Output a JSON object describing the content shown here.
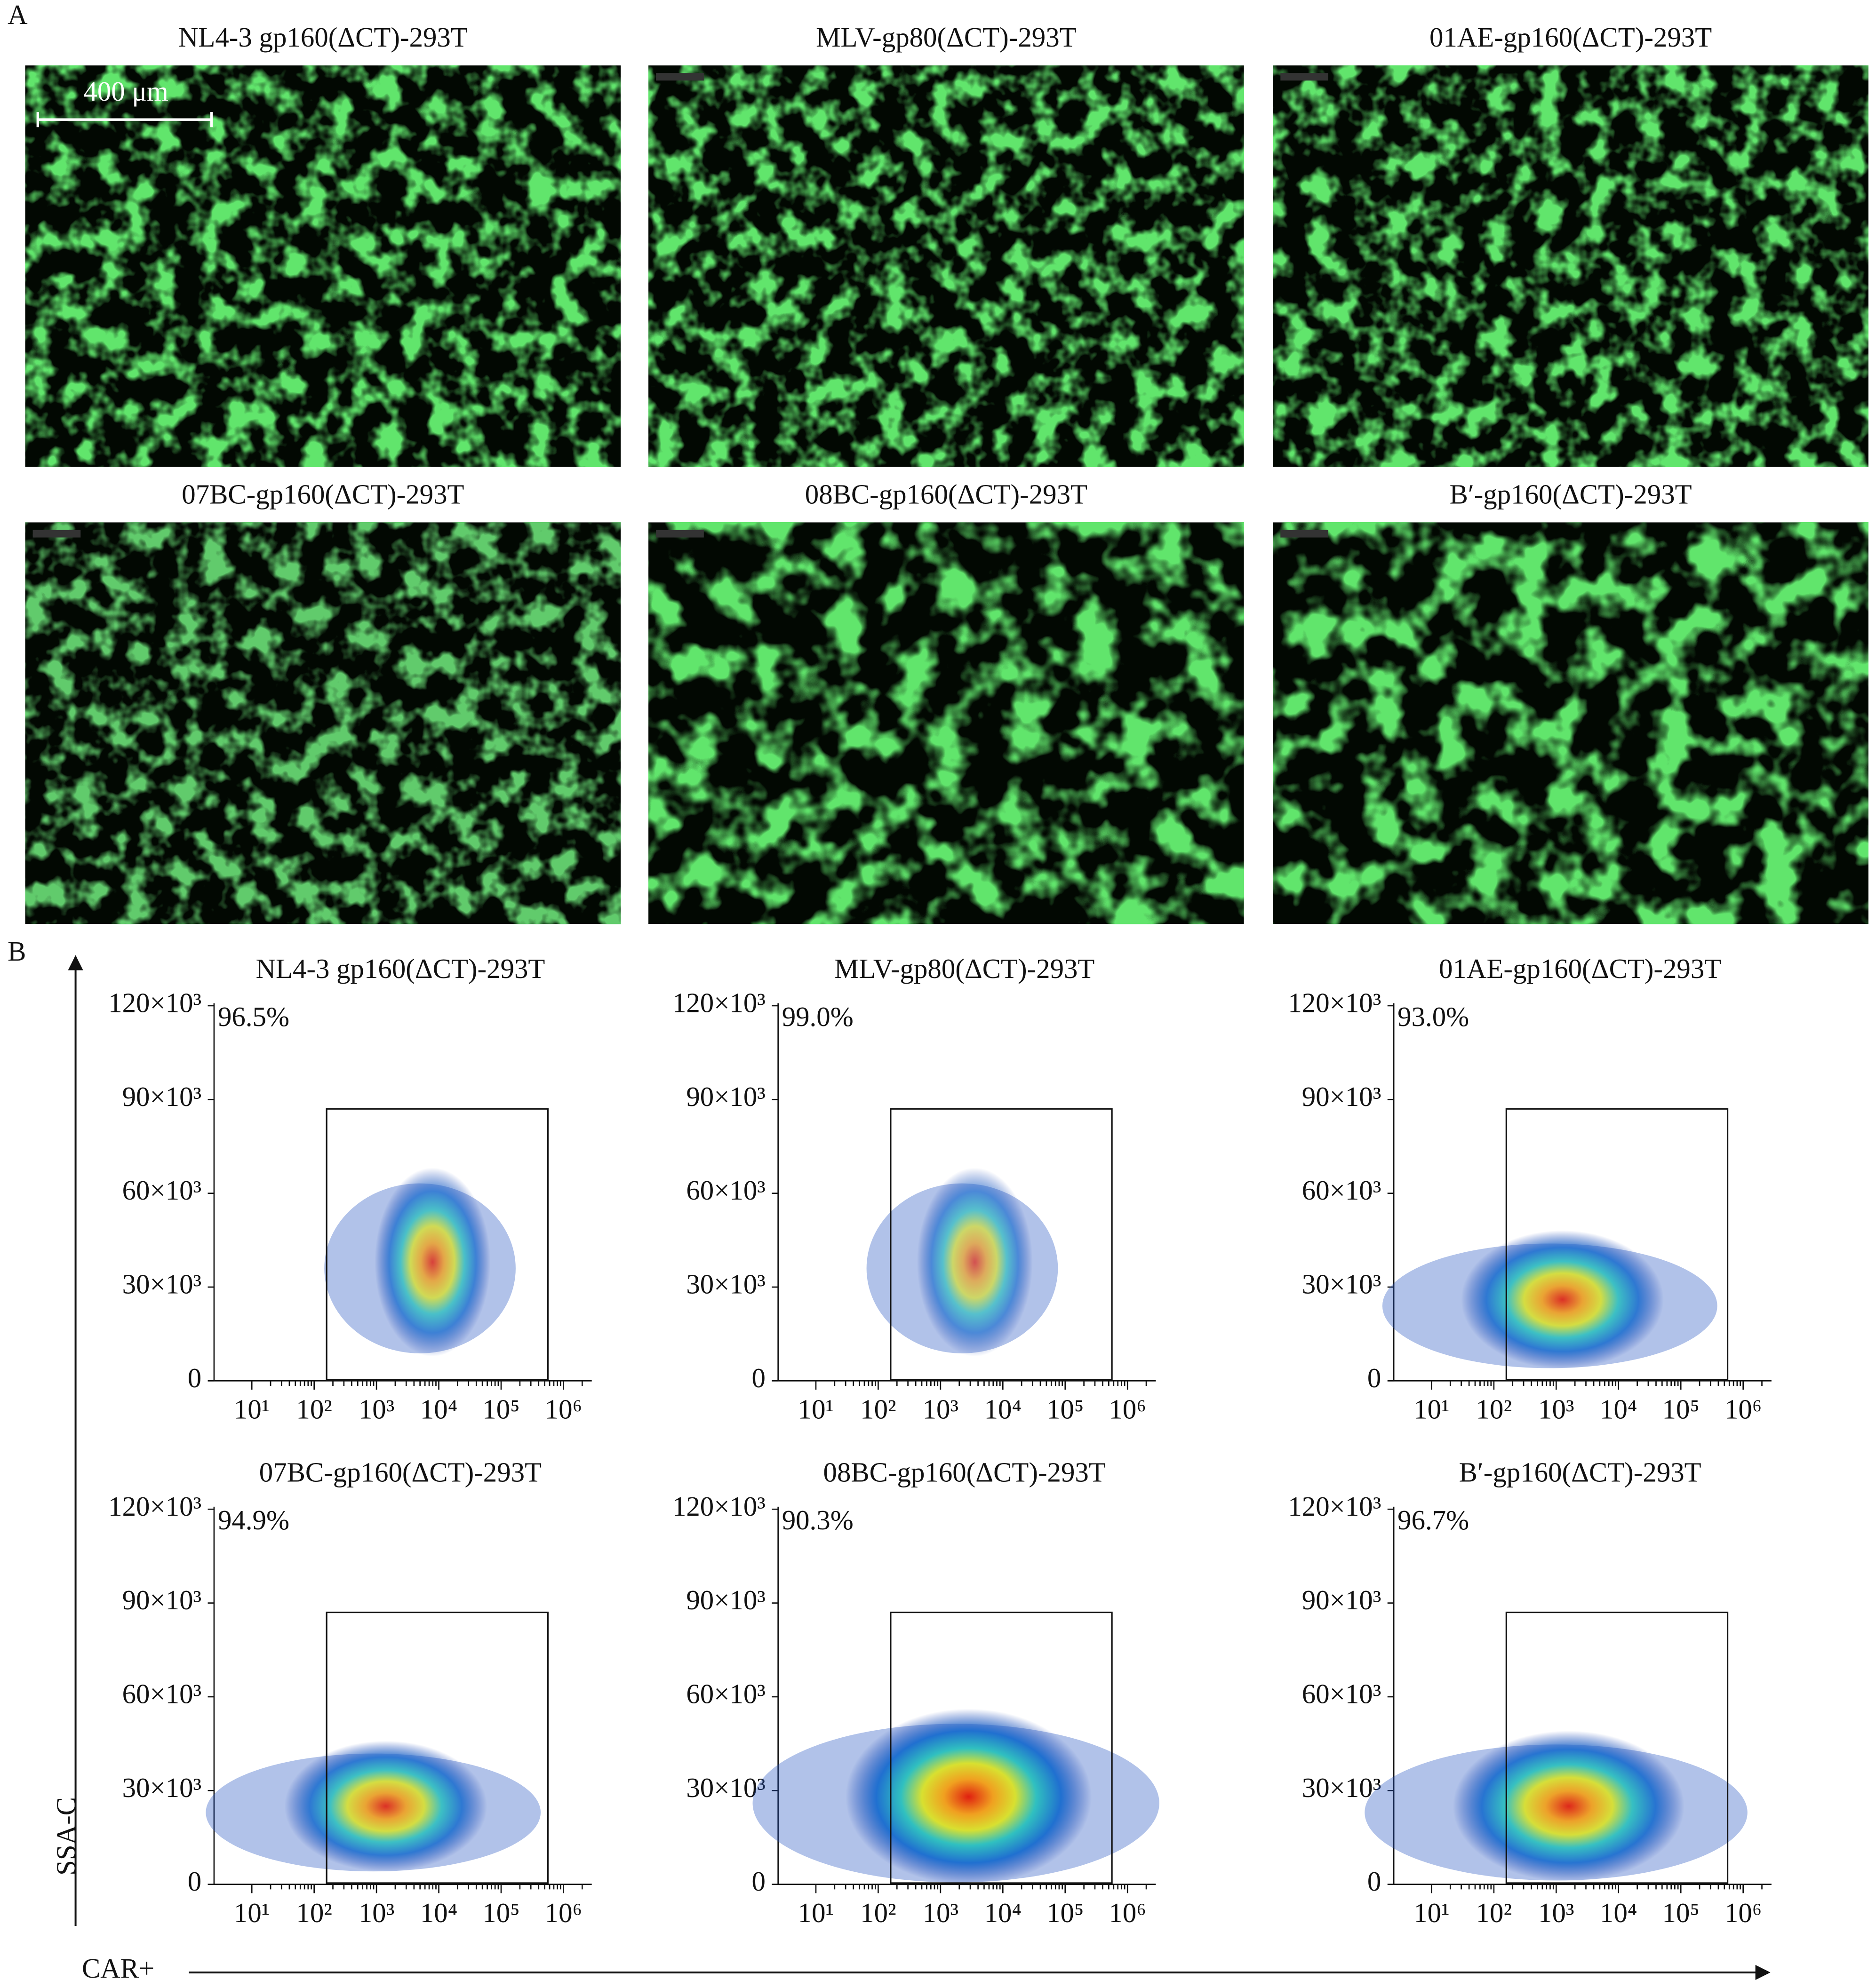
{
  "panel_a": {
    "label": "A",
    "scale_bar": "400 μm",
    "images": [
      {
        "title": "NL4-3 gp160(ΔCT)-293T"
      },
      {
        "title": "MLV-gp80(ΔCT)-293T"
      },
      {
        "title": "01AE-gp160(ΔCT)-293T"
      },
      {
        "title": "07BC-gp160(ΔCT)-293T"
      },
      {
        "title": "08BC-gp160(ΔCT)-293T"
      },
      {
        "title": "B′-gp160(ΔCT)-293T"
      }
    ]
  },
  "panel_b": {
    "label": "B",
    "y_axis_label": "SSA-C",
    "x_axis_label": "CAR+",
    "yticks": [
      "0",
      "30×10³",
      "60×10³",
      "90×10³",
      "120×10³"
    ],
    "xticks": [
      "10¹",
      "10²",
      "10³",
      "10⁴",
      "10⁵",
      "10⁶"
    ],
    "plots": [
      {
        "title": "NL4-3 gp160(ΔCT)-293T",
        "percent": "96.5%"
      },
      {
        "title": "MLV-gp80(ΔCT)-293T",
        "percent": "99.0%"
      },
      {
        "title": "01AE-gp160(ΔCT)-293T",
        "percent": "93.0%"
      },
      {
        "title": "07BC-gp160(ΔCT)-293T",
        "percent": "94.9%"
      },
      {
        "title": "08BC-gp160(ΔCT)-293T",
        "percent": "90.3%"
      },
      {
        "title": "B′-gp160(ΔCT)-293T",
        "percent": "96.7%"
      }
    ]
  }
}
